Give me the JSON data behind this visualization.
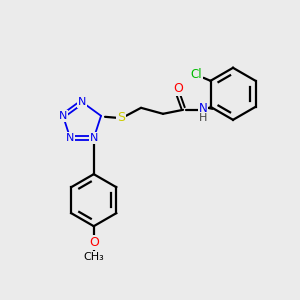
{
  "background_color": "#ebebeb",
  "atom_colors": {
    "C": "#000000",
    "N": "#0000ee",
    "O": "#ff0000",
    "S": "#cccc00",
    "Cl": "#00bb00",
    "H": "#444444"
  },
  "bond_color": "#000000",
  "figsize": [
    3.0,
    3.0
  ],
  "dpi": 100
}
